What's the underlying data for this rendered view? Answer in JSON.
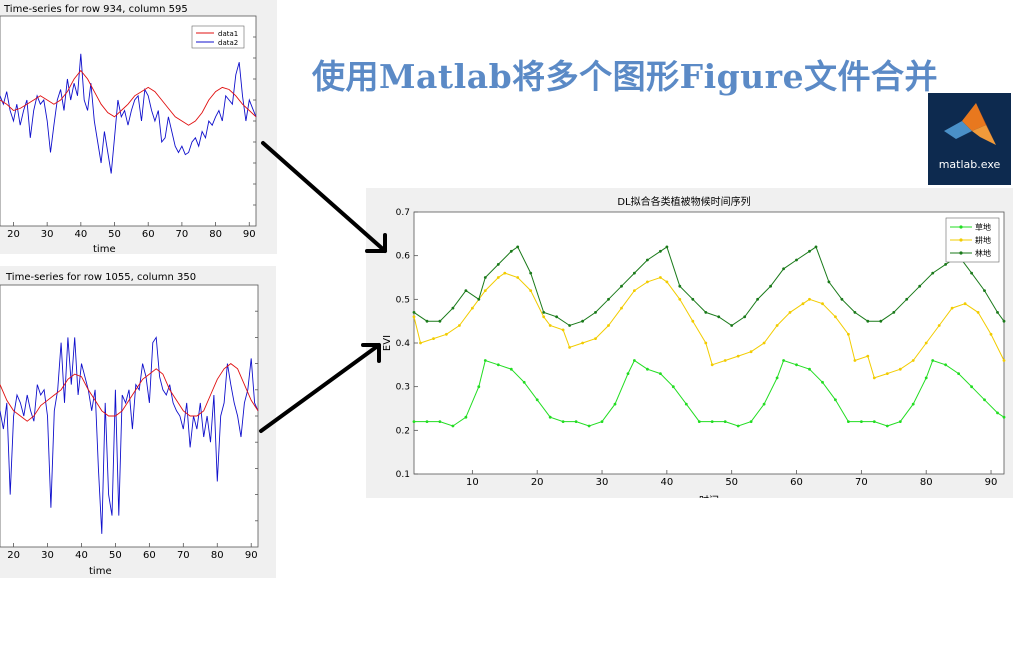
{
  "banner": {
    "title": "使用Matlab将多个图形Figure文件合并"
  },
  "app_icon": {
    "label": "matlab.exe",
    "icon": "matlab-logo-icon"
  },
  "colors": {
    "banner": "#5b8ac6",
    "blue_series": "#1010cc",
    "red_series": "#e01010",
    "grass": "#22dd22",
    "crop": "#f2cc00",
    "forest": "#1a7a1a"
  },
  "chart_data": [
    {
      "type": "line",
      "title": "Time-series for row 934, column 595",
      "xlabel": "time",
      "ylabel": "",
      "xticks": [
        20,
        30,
        40,
        50,
        60,
        70,
        80,
        90
      ],
      "xlim": [
        16,
        92
      ],
      "ylim": [
        0,
        1
      ],
      "legend": {
        "placement": "top-right",
        "entries": [
          "data1",
          "data2"
        ]
      },
      "series": [
        {
          "name": "data1",
          "color": "#1010cc",
          "x": [
            16,
            17,
            18,
            19,
            20,
            21,
            22,
            23,
            24,
            25,
            26,
            27,
            28,
            29,
            30,
            31,
            32,
            33,
            34,
            35,
            36,
            37,
            38,
            39,
            40,
            41,
            42,
            43,
            44,
            45,
            46,
            47,
            48,
            49,
            50,
            51,
            52,
            53,
            54,
            55,
            56,
            57,
            58,
            59,
            60,
            61,
            62,
            63,
            64,
            65,
            66,
            67,
            68,
            69,
            70,
            71,
            72,
            73,
            74,
            75,
            76,
            77,
            78,
            79,
            80,
            81,
            82,
            83,
            84,
            85,
            86,
            87,
            88,
            89,
            90,
            91,
            92
          ],
          "y": [
            0.62,
            0.58,
            0.64,
            0.55,
            0.5,
            0.58,
            0.48,
            0.55,
            0.6,
            0.42,
            0.55,
            0.62,
            0.58,
            0.6,
            0.5,
            0.35,
            0.48,
            0.6,
            0.65,
            0.55,
            0.7,
            0.6,
            0.68,
            0.62,
            0.82,
            0.6,
            0.55,
            0.68,
            0.5,
            0.4,
            0.3,
            0.45,
            0.35,
            0.25,
            0.42,
            0.6,
            0.52,
            0.55,
            0.48,
            0.55,
            0.6,
            0.62,
            0.5,
            0.65,
            0.62,
            0.55,
            0.5,
            0.55,
            0.4,
            0.42,
            0.52,
            0.45,
            0.38,
            0.35,
            0.38,
            0.34,
            0.35,
            0.4,
            0.42,
            0.38,
            0.45,
            0.42,
            0.5,
            0.48,
            0.52,
            0.55,
            0.5,
            0.62,
            0.6,
            0.58,
            0.72,
            0.78,
            0.62,
            0.5,
            0.6,
            0.56,
            0.52
          ]
        },
        {
          "name": "data2",
          "color": "#e01010",
          "x": [
            16,
            18,
            20,
            22,
            24,
            26,
            28,
            30,
            32,
            34,
            36,
            38,
            40,
            42,
            44,
            46,
            48,
            50,
            52,
            54,
            56,
            58,
            60,
            62,
            64,
            66,
            68,
            70,
            72,
            74,
            76,
            78,
            80,
            82,
            84,
            86,
            88,
            90,
            92
          ],
          "y": [
            0.6,
            0.58,
            0.55,
            0.56,
            0.58,
            0.6,
            0.62,
            0.6,
            0.58,
            0.6,
            0.64,
            0.7,
            0.74,
            0.7,
            0.64,
            0.58,
            0.54,
            0.52,
            0.55,
            0.58,
            0.62,
            0.64,
            0.66,
            0.64,
            0.6,
            0.56,
            0.52,
            0.5,
            0.48,
            0.5,
            0.54,
            0.6,
            0.64,
            0.66,
            0.65,
            0.62,
            0.58,
            0.55,
            0.52
          ]
        }
      ]
    },
    {
      "type": "line",
      "title": "Time-series for row 1055, column 350",
      "xlabel": "time",
      "ylabel": "",
      "xticks": [
        20,
        30,
        40,
        50,
        60,
        70,
        80,
        90
      ],
      "xlim": [
        16,
        92
      ],
      "ylim": [
        0,
        1
      ],
      "legend": {
        "placement": "none",
        "entries": []
      },
      "series": [
        {
          "name": "",
          "color": "#1010cc",
          "x": [
            16,
            17,
            18,
            19,
            20,
            21,
            22,
            23,
            24,
            25,
            26,
            27,
            28,
            29,
            30,
            31,
            32,
            33,
            34,
            35,
            36,
            37,
            38,
            39,
            40,
            41,
            42,
            43,
            44,
            45,
            46,
            47,
            48,
            49,
            50,
            51,
            52,
            53,
            54,
            55,
            56,
            57,
            58,
            59,
            60,
            61,
            62,
            63,
            64,
            65,
            66,
            67,
            68,
            69,
            70,
            71,
            72,
            73,
            74,
            75,
            76,
            77,
            78,
            79,
            80,
            81,
            82,
            83,
            84,
            85,
            86,
            87,
            88,
            89,
            90,
            91,
            92
          ],
          "y": [
            0.52,
            0.45,
            0.55,
            0.2,
            0.5,
            0.58,
            0.55,
            0.5,
            0.58,
            0.52,
            0.48,
            0.62,
            0.58,
            0.6,
            0.5,
            0.15,
            0.52,
            0.6,
            0.78,
            0.55,
            0.8,
            0.62,
            0.8,
            0.58,
            0.7,
            0.65,
            0.6,
            0.52,
            0.6,
            0.3,
            0.05,
            0.55,
            0.2,
            0.12,
            0.6,
            0.12,
            0.58,
            0.55,
            0.6,
            0.45,
            0.62,
            0.6,
            0.7,
            0.65,
            0.55,
            0.78,
            0.8,
            0.65,
            0.6,
            0.58,
            0.62,
            0.55,
            0.52,
            0.5,
            0.45,
            0.55,
            0.38,
            0.5,
            0.45,
            0.55,
            0.42,
            0.5,
            0.4,
            0.58,
            0.25,
            0.5,
            0.55,
            0.7,
            0.62,
            0.55,
            0.5,
            0.42,
            0.55,
            0.6,
            0.72,
            0.55,
            0.52
          ]
        },
        {
          "name": "",
          "color": "#e01010",
          "x": [
            16,
            18,
            20,
            22,
            24,
            26,
            28,
            30,
            32,
            34,
            36,
            38,
            40,
            42,
            44,
            46,
            48,
            50,
            52,
            54,
            56,
            58,
            60,
            62,
            64,
            66,
            68,
            70,
            72,
            74,
            76,
            78,
            80,
            82,
            84,
            86,
            88,
            90,
            92
          ],
          "y": [
            0.62,
            0.56,
            0.52,
            0.5,
            0.48,
            0.5,
            0.54,
            0.56,
            0.58,
            0.6,
            0.64,
            0.66,
            0.65,
            0.6,
            0.56,
            0.52,
            0.5,
            0.5,
            0.52,
            0.56,
            0.6,
            0.64,
            0.66,
            0.68,
            0.66,
            0.6,
            0.56,
            0.52,
            0.5,
            0.5,
            0.52,
            0.58,
            0.64,
            0.68,
            0.7,
            0.68,
            0.62,
            0.56,
            0.52
          ]
        }
      ]
    },
    {
      "type": "line",
      "title": "DL拟合各类植被物候时间序列",
      "xlabel": "时间",
      "ylabel": "EVI",
      "xlim": [
        1,
        92
      ],
      "ylim": [
        0.1,
        0.7
      ],
      "xticks": [
        10,
        20,
        30,
        40,
        50,
        60,
        70,
        80,
        90
      ],
      "yticks": [
        0.1,
        0.2,
        0.3,
        0.4,
        0.5,
        0.6,
        0.7
      ],
      "legend": {
        "placement": "top-right",
        "entries": [
          "草地",
          "耕地",
          "林地"
        ]
      },
      "series": [
        {
          "name": "草地",
          "color": "#22dd22",
          "x": [
            1,
            3,
            5,
            7,
            9,
            11,
            12,
            14,
            16,
            18,
            20,
            22,
            24,
            26,
            28,
            30,
            32,
            34,
            35,
            37,
            39,
            41,
            43,
            45,
            47,
            49,
            51,
            53,
            55,
            57,
            58,
            60,
            62,
            64,
            66,
            68,
            70,
            72,
            74,
            76,
            78,
            80,
            81,
            83,
            85,
            87,
            89,
            91,
            92
          ],
          "y": [
            0.22,
            0.22,
            0.22,
            0.21,
            0.23,
            0.3,
            0.36,
            0.35,
            0.34,
            0.31,
            0.27,
            0.23,
            0.22,
            0.22,
            0.21,
            0.22,
            0.26,
            0.33,
            0.36,
            0.34,
            0.33,
            0.3,
            0.26,
            0.22,
            0.22,
            0.22,
            0.21,
            0.22,
            0.26,
            0.32,
            0.36,
            0.35,
            0.34,
            0.31,
            0.27,
            0.22,
            0.22,
            0.22,
            0.21,
            0.22,
            0.26,
            0.32,
            0.36,
            0.35,
            0.33,
            0.3,
            0.27,
            0.24,
            0.23
          ]
        },
        {
          "name": "耕地",
          "color": "#f2cc00",
          "x": [
            1,
            2,
            4,
            6,
            8,
            10,
            12,
            14,
            15,
            17,
            19,
            21,
            22,
            24,
            25,
            27,
            29,
            31,
            33,
            35,
            37,
            39,
            40,
            42,
            44,
            46,
            47,
            49,
            51,
            53,
            55,
            57,
            59,
            61,
            62,
            64,
            66,
            68,
            69,
            71,
            72,
            74,
            76,
            78,
            80,
            82,
            84,
            86,
            88,
            90,
            92
          ],
          "y": [
            0.46,
            0.4,
            0.41,
            0.42,
            0.44,
            0.48,
            0.52,
            0.55,
            0.56,
            0.55,
            0.52,
            0.46,
            0.44,
            0.43,
            0.39,
            0.4,
            0.41,
            0.44,
            0.48,
            0.52,
            0.54,
            0.55,
            0.54,
            0.5,
            0.45,
            0.4,
            0.35,
            0.36,
            0.37,
            0.38,
            0.4,
            0.44,
            0.47,
            0.49,
            0.5,
            0.49,
            0.46,
            0.42,
            0.36,
            0.37,
            0.32,
            0.33,
            0.34,
            0.36,
            0.4,
            0.44,
            0.48,
            0.49,
            0.47,
            0.42,
            0.36
          ]
        },
        {
          "name": "林地",
          "color": "#1a7a1a",
          "x": [
            1,
            3,
            5,
            7,
            9,
            11,
            12,
            14,
            16,
            17,
            19,
            21,
            23,
            25,
            27,
            29,
            31,
            33,
            35,
            37,
            39,
            40,
            42,
            44,
            46,
            48,
            50,
            52,
            54,
            56,
            58,
            60,
            62,
            63,
            65,
            67,
            69,
            71,
            73,
            75,
            77,
            79,
            81,
            83,
            85,
            87,
            89,
            91,
            92
          ],
          "y": [
            0.47,
            0.45,
            0.45,
            0.48,
            0.52,
            0.5,
            0.55,
            0.58,
            0.61,
            0.62,
            0.56,
            0.47,
            0.46,
            0.44,
            0.45,
            0.47,
            0.5,
            0.53,
            0.56,
            0.59,
            0.61,
            0.62,
            0.53,
            0.5,
            0.47,
            0.46,
            0.44,
            0.46,
            0.5,
            0.53,
            0.57,
            0.59,
            0.61,
            0.62,
            0.54,
            0.5,
            0.47,
            0.45,
            0.45,
            0.47,
            0.5,
            0.53,
            0.56,
            0.58,
            0.6,
            0.56,
            0.52,
            0.47,
            0.45
          ]
        }
      ]
    }
  ]
}
